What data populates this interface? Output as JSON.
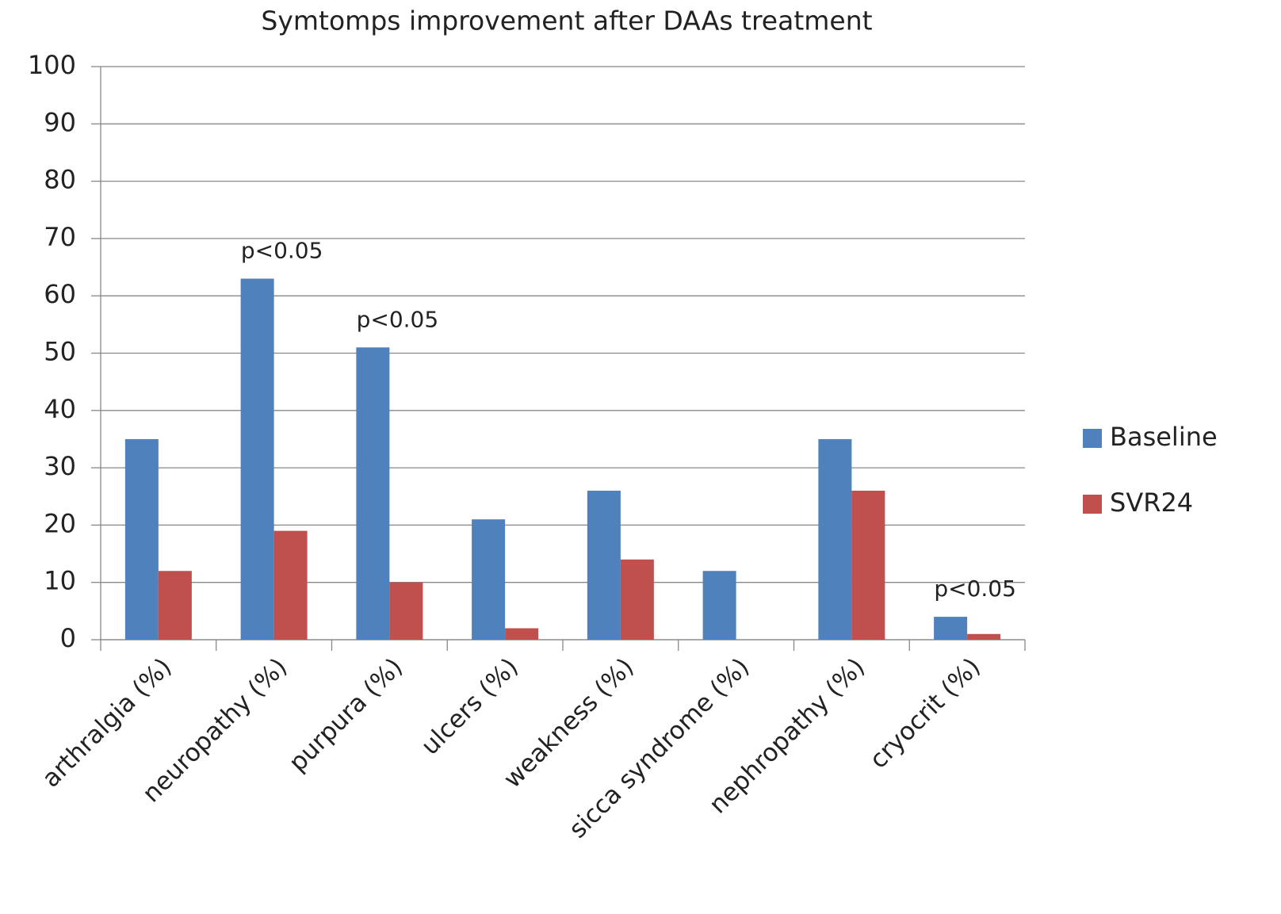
{
  "chart_data": {
    "type": "bar",
    "title": "Symtomps improvement after DAAs treatment",
    "categories": [
      "arthralgia (%)",
      "neuropathy (%)",
      "purpura (%)",
      "ulcers (%)",
      "weakness (%)",
      "sicca syndrome (%)",
      "nephropathy (%)",
      "cryocrit (%)"
    ],
    "series": [
      {
        "name": "Baseline",
        "color": "#4f81bd",
        "values": [
          35,
          63,
          51,
          21,
          26,
          12,
          35,
          4
        ]
      },
      {
        "name": "SVR24",
        "color": "#c0504d",
        "values": [
          12,
          19,
          10,
          2,
          14,
          0,
          26,
          1
        ]
      }
    ],
    "annotations": [
      null,
      "p<0.05",
      "p<0.05",
      null,
      null,
      null,
      null,
      "p<0.05"
    ],
    "ylim": [
      0,
      100
    ],
    "yticks": [
      0,
      10,
      20,
      30,
      40,
      50,
      60,
      70,
      80,
      90,
      100
    ],
    "grid": true,
    "legend": "right"
  }
}
